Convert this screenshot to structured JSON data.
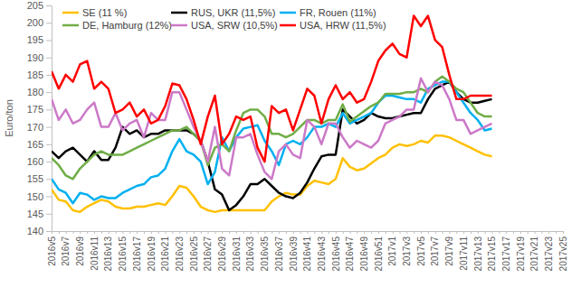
{
  "chart_data": {
    "type": "line",
    "y_label": "Euro/ton",
    "categories": [
      "2016v5",
      null,
      "2016v7",
      null,
      "2016v9",
      null,
      "2016v11",
      null,
      "2016v13",
      null,
      "2016v15",
      null,
      "2016v17",
      null,
      "2016v19",
      null,
      "2016v21",
      null,
      "2016v23",
      null,
      "2016v25",
      null,
      "2016v27",
      null,
      "2016v29",
      null,
      "2016v31",
      null,
      "2016v33",
      null,
      "2016v35",
      null,
      "2016v37",
      null,
      "2016v39",
      null,
      "2016v41",
      null,
      "2016v43",
      null,
      "2016v45",
      null,
      "2016v47",
      null,
      "2016v49",
      null,
      "2016v51",
      null,
      "2017v1",
      null,
      "2017v3",
      null,
      "2017v5",
      null,
      "2017v7",
      null,
      "2017v9",
      null,
      "2017v11",
      null,
      "2017v13",
      null,
      "2017v15",
      null,
      "2017v17",
      null,
      "2017v19",
      null,
      "2017v21",
      null,
      "2017v23",
      null,
      "2017v25"
    ],
    "series": [
      {
        "name": "SE (11 %)",
        "color": "#ffc000",
        "values": [
          152,
          149,
          148.5,
          146,
          145.5,
          147,
          148,
          149,
          148.5,
          147,
          146.5,
          146.5,
          147,
          147,
          147.5,
          148,
          147.5,
          150,
          153,
          152.5,
          150,
          147,
          146,
          145.5,
          146,
          146,
          146,
          146,
          146,
          146,
          146,
          148.5,
          150,
          151,
          150.5,
          150.5,
          153,
          154.5,
          154,
          153.5,
          155,
          161,
          158.5,
          157.5,
          158,
          159.5,
          161,
          162,
          164,
          165,
          164.5,
          165,
          166,
          165.5,
          167.5,
          167.5,
          167,
          166,
          165,
          164,
          163,
          162,
          161.5,
          null,
          null,
          null,
          null,
          null,
          null,
          null,
          null,
          null,
          null
        ]
      },
      {
        "name": "RUS, UKR (11,5%)",
        "color": "#000000",
        "values": [
          163,
          161,
          163,
          164,
          162,
          160,
          163,
          160.5,
          160.5,
          164,
          170,
          168,
          169,
          167,
          168,
          168,
          169,
          169,
          169,
          169,
          168,
          166,
          160,
          152,
          150.5,
          146,
          147.5,
          150,
          153.5,
          153.5,
          155,
          153,
          151,
          150,
          149.5,
          151,
          154,
          158,
          161.5,
          162,
          162,
          175,
          173,
          171,
          172,
          174,
          173,
          172.5,
          172.5,
          173,
          173.5,
          174,
          174,
          178,
          181,
          182,
          183,
          180,
          178,
          177,
          177,
          177.5,
          178,
          null,
          null,
          null,
          null,
          null,
          null,
          null,
          null,
          null,
          null
        ]
      },
      {
        "name": "FR, Rouen (11%)",
        "color": "#00b0f0",
        "values": [
          155,
          152,
          151,
          148,
          151,
          150.5,
          149,
          150,
          149.5,
          149.5,
          151,
          152,
          153,
          153.5,
          155.5,
          156,
          158,
          163,
          166.5,
          163,
          162,
          160,
          153.5,
          157,
          167,
          163,
          167,
          169.5,
          170,
          170.5,
          166,
          163,
          159,
          165,
          166,
          165,
          167,
          170,
          170,
          171,
          170,
          174,
          171,
          172,
          173,
          174,
          177,
          179,
          179,
          178.5,
          178,
          178,
          177,
          181,
          182,
          183,
          183,
          180,
          177,
          174,
          172,
          169,
          169.5,
          null,
          null,
          null,
          null,
          null,
          null,
          null,
          null,
          null,
          null
        ]
      },
      {
        "name": "DE, Hamburg (12%)",
        "color": "#70ad47",
        "values": [
          161,
          159,
          156,
          155,
          158,
          160,
          162,
          163,
          162,
          162,
          162,
          163,
          164,
          165,
          166,
          167,
          168,
          169,
          169,
          170,
          168,
          166,
          159,
          164,
          165,
          163,
          169,
          174,
          175,
          175,
          173,
          168,
          168,
          167,
          168,
          170,
          172,
          172,
          171,
          172,
          172,
          176.5,
          171.5,
          173,
          174.5,
          176,
          177,
          179.5,
          179.5,
          179.5,
          180,
          180,
          181,
          180,
          183,
          184.5,
          183,
          181,
          180,
          177,
          174,
          173,
          173,
          null,
          null,
          null,
          null,
          null,
          null,
          null,
          null,
          null,
          null
        ]
      },
      {
        "name": "USA, SRW (10,5%)",
        "color": "#cc79c8",
        "values": [
          178,
          172,
          175,
          171,
          172,
          175,
          177,
          170,
          170,
          174,
          169,
          171,
          172,
          167,
          174,
          172,
          172,
          180,
          180,
          175,
          170,
          166,
          160,
          170,
          158,
          156,
          167,
          167,
          168,
          162,
          157,
          155,
          163,
          165,
          162,
          161,
          172,
          170,
          165,
          171,
          171,
          167,
          164,
          166,
          165,
          164,
          166,
          171,
          172,
          173,
          175,
          175,
          184,
          180,
          183,
          182,
          178,
          172,
          172,
          168,
          169,
          170,
          171,
          null,
          null,
          null,
          null,
          null,
          null,
          null,
          null,
          null,
          null
        ]
      },
      {
        "name": "USA, HRW (11,5%)",
        "color": "#ff0000",
        "values": [
          186,
          181,
          185,
          183,
          188,
          189,
          181,
          183,
          181,
          174,
          175,
          177,
          173,
          175,
          171,
          172,
          176,
          182.5,
          182,
          178,
          172,
          165,
          173,
          179,
          165,
          168,
          173,
          172,
          173,
          164,
          160,
          176,
          174,
          175,
          169,
          175,
          181,
          179,
          171,
          178,
          182,
          178,
          180,
          177,
          178,
          183,
          189,
          192,
          194,
          191,
          190,
          202,
          199,
          202,
          195,
          193,
          185,
          178,
          178,
          179,
          179,
          179,
          179,
          null,
          null,
          null,
          null,
          null,
          null,
          null,
          null,
          null,
          null
        ]
      }
    ],
    "ylim": [
      140,
      205
    ],
    "yticks": [
      140,
      145,
      150,
      155,
      160,
      165,
      170,
      175,
      180,
      185,
      190,
      195,
      200,
      205
    ],
    "grid": false,
    "legend": "top"
  }
}
